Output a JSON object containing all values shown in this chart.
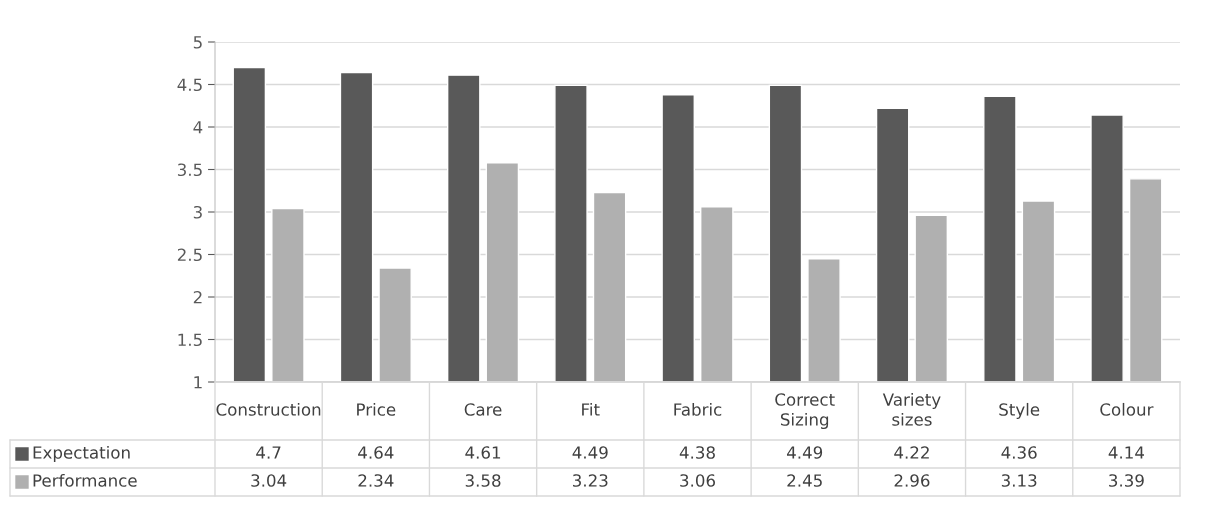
{
  "chart_data": {
    "type": "bar",
    "categories": [
      "Construction",
      "Price",
      "Care",
      "Fit",
      "Fabric",
      "Correct Sizing",
      "Variety sizes",
      "Style",
      "Colour"
    ],
    "series": [
      {
        "name": "Expectation",
        "color": "#595959",
        "values": [
          4.7,
          4.64,
          4.61,
          4.49,
          4.38,
          4.49,
          4.22,
          4.36,
          4.14
        ]
      },
      {
        "name": "Performance",
        "color": "#b0b0b0",
        "values": [
          3.04,
          2.34,
          3.58,
          3.23,
          3.06,
          2.45,
          2.96,
          3.13,
          3.39
        ]
      }
    ],
    "ylim": [
      1,
      5
    ],
    "yticks": [
      1,
      1.5,
      2,
      2.5,
      3,
      3.5,
      4,
      4.5,
      5
    ],
    "grid": "y",
    "legend": "bottom left",
    "data_labels": true
  }
}
